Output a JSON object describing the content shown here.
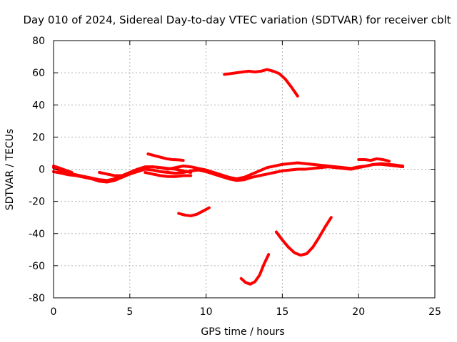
{
  "chart_data": {
    "type": "line",
    "title": "Day 010 of 2024, Sidereal Day-to-day VTEC variation (SDTVAR) for receiver cblt",
    "xlabel": "GPS time / hours",
    "ylabel": "SDTVAR / TECUs",
    "xlim": [
      0,
      25
    ],
    "ylim": [
      -80,
      80
    ],
    "xticks": [
      0,
      5,
      10,
      15,
      20,
      25
    ],
    "yticks": [
      -80,
      -60,
      -40,
      -20,
      0,
      20,
      40,
      60,
      80
    ],
    "x_tick_labels": [
      "0",
      "5",
      "10",
      "15",
      "20",
      "25"
    ],
    "y_tick_labels": [
      "-80",
      "-60",
      "-40",
      "-20",
      "0",
      "20",
      "40",
      "60",
      "80"
    ],
    "grid": true,
    "legend": "none",
    "colors": {
      "series": "#ff0000",
      "axis": "#000000",
      "grid": "#b0b0b0"
    },
    "series": [
      {
        "name": "arc-main-1",
        "x": [
          0.0,
          0.5,
          1.0,
          1.5,
          2.0,
          2.5,
          3.0,
          3.5,
          4.0,
          4.5,
          5.0,
          5.5,
          6.0,
          6.5,
          7.0,
          7.5,
          8.0,
          8.5,
          9.0,
          9.5,
          10.0,
          10.5,
          11.0,
          11.5,
          12.0,
          12.5,
          13.0,
          13.5,
          14.0,
          14.5,
          15.0,
          15.5,
          16.0,
          16.5,
          17.0,
          17.5,
          18.0,
          18.5,
          19.0,
          19.5,
          20.0,
          20.5,
          21.0,
          21.5,
          22.0,
          22.5,
          22.9
        ],
        "y": [
          1.0,
          -1.0,
          -2.5,
          -3.5,
          -4.5,
          -5.5,
          -6.5,
          -7.0,
          -6.0,
          -4.0,
          -2.0,
          0.0,
          1.5,
          1.5,
          1.0,
          0.0,
          1.0,
          2.0,
          1.5,
          0.5,
          -0.5,
          -2.0,
          -3.5,
          -5.0,
          -6.0,
          -5.0,
          -3.0,
          -1.0,
          1.0,
          2.0,
          3.0,
          3.5,
          4.0,
          3.5,
          3.0,
          2.5,
          2.0,
          1.5,
          1.0,
          0.5,
          1.5,
          2.0,
          3.0,
          3.5,
          3.0,
          2.5,
          2.0
        ]
      },
      {
        "name": "arc-main-2",
        "x": [
          0.0,
          0.5,
          1.0,
          1.5,
          2.0,
          2.5,
          3.0,
          3.5,
          4.0,
          4.5,
          5.0,
          5.5,
          6.0,
          6.5,
          7.0,
          7.5,
          8.0,
          8.5,
          9.0,
          9.5,
          10.0,
          10.5,
          11.0,
          11.5,
          12.0,
          12.5,
          13.0,
          13.5,
          14.0,
          14.5,
          15.0,
          15.5,
          16.0,
          16.5,
          17.0,
          17.5,
          18.0,
          18.5,
          19.0,
          19.5,
          20.0,
          20.5,
          21.0,
          21.5,
          22.0,
          22.5,
          22.9
        ],
        "y": [
          -1.5,
          -2.5,
          -3.5,
          -4.0,
          -5.0,
          -6.0,
          -7.5,
          -8.0,
          -7.0,
          -5.0,
          -3.0,
          -1.5,
          0.0,
          -0.5,
          -1.5,
          -2.0,
          -2.5,
          -2.0,
          -1.0,
          -0.5,
          -1.5,
          -3.0,
          -4.5,
          -6.0,
          -7.0,
          -6.5,
          -5.0,
          -4.0,
          -3.0,
          -2.0,
          -1.0,
          -0.5,
          0.0,
          0.0,
          0.5,
          1.0,
          1.5,
          1.0,
          0.5,
          0.0,
          1.0,
          2.0,
          3.0,
          3.0,
          2.5,
          2.0,
          1.5
        ]
      },
      {
        "name": "arc-short-a",
        "x": [
          0.0,
          0.3,
          0.6,
          0.9,
          1.2
        ],
        "y": [
          2.0,
          1.0,
          0.0,
          -1.0,
          -2.0
        ]
      },
      {
        "name": "arc-short-b",
        "x": [
          3.0,
          3.5,
          4.0,
          4.5,
          5.0,
          5.5,
          6.0
        ],
        "y": [
          -2.0,
          -3.0,
          -4.0,
          -4.0,
          -3.0,
          -1.0,
          1.0
        ]
      },
      {
        "name": "arc-short-c",
        "x": [
          6.0,
          6.5,
          7.0,
          7.5,
          8.0,
          8.5,
          9.0
        ],
        "y": [
          -2.0,
          -3.0,
          -4.0,
          -4.5,
          -4.5,
          -4.0,
          -4.0
        ]
      },
      {
        "name": "arc-6-to-8",
        "x": [
          6.2,
          6.6,
          7.0,
          7.4,
          7.8,
          8.2,
          8.5
        ],
        "y": [
          9.5,
          8.5,
          7.5,
          6.5,
          6.0,
          5.8,
          5.5
        ]
      },
      {
        "name": "arc-6-to-9-low",
        "x": [
          6.5,
          7.0,
          7.5,
          8.0,
          8.5,
          9.0
        ],
        "y": [
          1.5,
          1.0,
          0.5,
          0.0,
          -1.0,
          -2.0
        ]
      },
      {
        "name": "arc-8-to-10",
        "x": [
          8.2,
          8.6,
          9.0,
          9.4,
          9.8,
          10.2
        ],
        "y": [
          -27.5,
          -28.5,
          -29.0,
          -28.0,
          -26.0,
          -24.0
        ]
      },
      {
        "name": "arc-11-to-16",
        "x": [
          11.2,
          11.6,
          12.0,
          12.4,
          12.8,
          13.2,
          13.6,
          14.0,
          14.4,
          14.8,
          15.2,
          15.6,
          16.0
        ],
        "y": [
          59.0,
          59.5,
          60.0,
          60.5,
          61.0,
          60.5,
          61.0,
          62.0,
          61.0,
          59.5,
          56.0,
          51.0,
          45.5
        ]
      },
      {
        "name": "arc-12-to-14",
        "x": [
          12.3,
          12.6,
          12.9,
          13.2,
          13.5,
          13.8,
          14.1
        ],
        "y": [
          -68.0,
          -70.5,
          -71.5,
          -70.0,
          -66.0,
          -59.0,
          -53.0
        ]
      },
      {
        "name": "arc-14-to-18",
        "x": [
          14.6,
          15.0,
          15.4,
          15.8,
          16.2,
          16.6,
          17.0,
          17.4,
          17.8,
          18.2
        ],
        "y": [
          -39.0,
          -44.0,
          -48.5,
          -52.0,
          -53.5,
          -52.5,
          -48.5,
          -42.5,
          -36.0,
          -30.0
        ]
      },
      {
        "name": "arc-20-to-22",
        "x": [
          20.0,
          20.4,
          20.8,
          21.2,
          21.6,
          22.0
        ],
        "y": [
          6.0,
          6.0,
          5.5,
          6.5,
          6.0,
          5.0
        ]
      }
    ]
  }
}
